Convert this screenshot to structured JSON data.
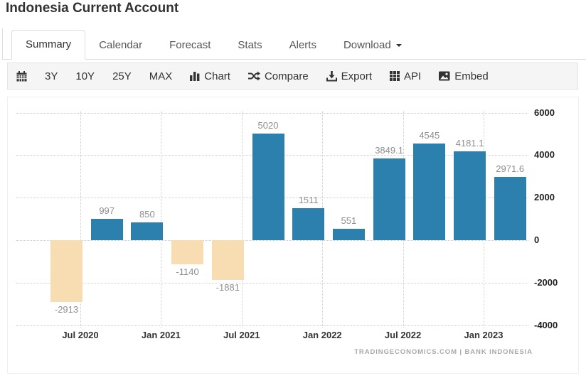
{
  "page": {
    "title": "Indonesia Current Account"
  },
  "tabs": {
    "items": [
      {
        "label": "Summary",
        "active": true
      },
      {
        "label": "Calendar",
        "active": false
      },
      {
        "label": "Forecast",
        "active": false
      },
      {
        "label": "Stats",
        "active": false
      },
      {
        "label": "Alerts",
        "active": false
      },
      {
        "label": "Download",
        "active": false,
        "caret": true
      }
    ]
  },
  "toolbar": {
    "range_buttons": [
      "3Y",
      "10Y",
      "25Y",
      "MAX"
    ],
    "actions": [
      {
        "icon": "bar-chart-icon",
        "label": "Chart"
      },
      {
        "icon": "shuffle-icon",
        "label": "Compare"
      },
      {
        "icon": "download-icon",
        "label": "Export"
      },
      {
        "icon": "grid-icon",
        "label": "API"
      },
      {
        "icon": "image-icon",
        "label": "Embed"
      }
    ]
  },
  "chart_data": {
    "type": "bar",
    "title": "Indonesia Current Account",
    "values": [
      -2913,
      997,
      850,
      -1140,
      -1881,
      5020,
      1511,
      551,
      3849.1,
      4545,
      4181.1,
      2971.6
    ],
    "bar_labels": [
      "-2913",
      "997",
      "850",
      "-1140",
      "-1881",
      "5020",
      "1511",
      "551",
      "3849.1",
      "4545",
      "4181.1",
      "2971.6"
    ],
    "x_tick_labels": [
      "Jul 2020",
      "Jan 2021",
      "Jul 2021",
      "Jan 2022",
      "Jul 2022",
      "Jan 2023"
    ],
    "x_tick_after_bar": [
      1,
      3,
      5,
      7,
      9,
      11
    ],
    "y_ticks": [
      6000,
      4000,
      2000,
      0,
      -2000,
      -4000
    ],
    "ylim": [
      -4000,
      6000
    ],
    "grid": "dotted",
    "legend": "none",
    "colors": {
      "positive_bar": "#2b80ad",
      "negative_bar": "#f8dcb2",
      "value_label": "#8e8e8e",
      "axis_label": "#333333"
    },
    "attribution": "TRADINGECONOMICS.COM | BANK INDONESIA"
  }
}
